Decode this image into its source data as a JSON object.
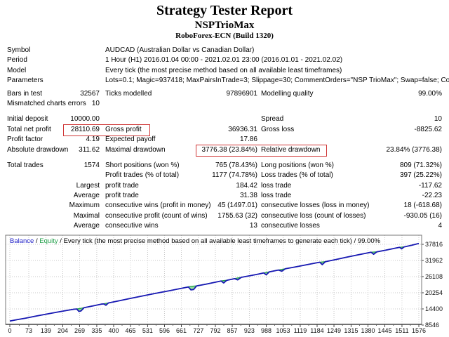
{
  "header": {
    "title": "Strategy Tester Report",
    "subtitle": "NSPTrioMax",
    "server": "RoboForex-ECN (Build 1320)"
  },
  "report": {
    "sections": [
      {
        "name": "setup",
        "rows": [
          {
            "c1": "Symbol",
            "c3": "AUDCAD (Australian Dollar vs Canadian Dollar)",
            "wide": true
          },
          {
            "c1": "Period",
            "c3": "1 Hour (H1) 2016.01.04 00:00 - 2021.02.01 23:00 (2016.01.01 - 2021.02.02)",
            "wide": true
          },
          {
            "c1": "Model",
            "c3": "Every tick (the most precise method based on all available least timeframes)",
            "wide": true
          },
          {
            "c1": "Parameters",
            "c3": "Lots=0.1; Magic=937418; MaxPairsInTrade=3; Slippage=30; CommentOrders=\"NSP TrioMax\"; Swap=false; Commission=false;",
            "wide": true
          }
        ]
      },
      {
        "name": "quality",
        "rows": [
          {
            "c1": "Bars in test",
            "c2": "32567",
            "c3": "Ticks modelled",
            "c4": "97896901",
            "c5": "Modelling quality",
            "c6": "99.00%"
          },
          {
            "c1": "Mismatched charts errors",
            "c2": "10"
          }
        ]
      },
      {
        "name": "results",
        "rows": [
          {
            "c1": "Initial deposit",
            "c2": "10000.00",
            "c5": "Spread",
            "c6": "10"
          },
          {
            "c1": "Total net profit",
            "c2": "28110.69",
            "c3": "Gross profit",
            "c4": "36936.31",
            "c5": "Gross loss",
            "c6": "-8825.62",
            "highlight": "h1"
          },
          {
            "c1": "Profit factor",
            "c2": "4.19",
            "c3": "Expected payoff",
            "c4": "17.86"
          },
          {
            "c1": "Absolute drawdown",
            "c2": "311.62",
            "c3": "Maximal drawdown",
            "c4": "3776.38 (23.84%)",
            "c5": "Relative drawdown",
            "c6": "23.84% (3776.38)",
            "highlight": "h2"
          }
        ]
      },
      {
        "name": "trades",
        "rows": [
          {
            "c1": "Total trades",
            "c2": "1574",
            "c3": "Short positions (won %)",
            "c4": "765 (78.43%)",
            "c5": "Long positions (won %)",
            "c6": "809 (71.32%)"
          },
          {
            "c3": "Profit trades (% of total)",
            "c4": "1177 (74.78%)",
            "c5": "Loss trades (% of total)",
            "c6": "397 (25.22%)"
          },
          {
            "c2": "Largest",
            "c3": "profit trade",
            "c4": "184.42",
            "c5": "loss trade",
            "c6": "-117.62"
          },
          {
            "c2": "Average",
            "c3": "profit trade",
            "c4": "31.38",
            "c5": "loss trade",
            "c6": "-22.23"
          },
          {
            "c2": "Maximum",
            "c3": "consecutive wins (profit in money)",
            "c4": "45 (1497.01)",
            "c5": "consecutive losses (loss in money)",
            "c6": "18 (-618.68)"
          },
          {
            "c2": "Maximal",
            "c3": "consecutive profit (count of wins)",
            "c4": "1755.63 (32)",
            "c5": "consecutive loss (count of losses)",
            "c6": "-930.05 (16)"
          },
          {
            "c2": "Average",
            "c3": "consecutive wins",
            "c4": "13",
            "c5": "consecutive losses",
            "c6": "4"
          }
        ]
      }
    ]
  },
  "chart_data": {
    "type": "line",
    "legend": {
      "balance_label": "Balance",
      "separator": " / ",
      "equity_label": "Equity",
      "rest": " / Every tick (the most precise method based on all available least timeframes to generate each tick) / 99.00%"
    },
    "x_ticks": [
      0,
      73,
      139,
      204,
      269,
      335,
      400,
      465,
      531,
      596,
      661,
      727,
      792,
      857,
      923,
      988,
      1053,
      1119,
      1184,
      1249,
      1315,
      1380,
      1445,
      1511,
      1576
    ],
    "y_ticks": [
      37816,
      31962,
      26108,
      20254,
      14400,
      8546
    ],
    "xlim": [
      0,
      1576
    ],
    "ylim": [
      8546,
      37816
    ],
    "grid": true,
    "legend_position": "top-left",
    "colors": {
      "balance": "#1818b4",
      "equity": "#22a04a",
      "equity_fill": "#90dd9c",
      "grid": "#c9c9c9",
      "axis": "#777777"
    },
    "series": [
      {
        "name": "Balance",
        "points": [
          [
            0,
            10000
          ],
          [
            30,
            10560
          ],
          [
            60,
            11050
          ],
          [
            100,
            11800
          ],
          [
            140,
            12480
          ],
          [
            180,
            13200
          ],
          [
            220,
            13870
          ],
          [
            248,
            14300
          ],
          [
            258,
            14380
          ],
          [
            266,
            13480
          ],
          [
            274,
            13650
          ],
          [
            286,
            14850
          ],
          [
            320,
            15480
          ],
          [
            352,
            16130
          ],
          [
            362,
            16200
          ],
          [
            370,
            15730
          ],
          [
            380,
            16560
          ],
          [
            420,
            17330
          ],
          [
            460,
            18110
          ],
          [
            500,
            18890
          ],
          [
            540,
            19650
          ],
          [
            580,
            20380
          ],
          [
            620,
            21100
          ],
          [
            655,
            21760
          ],
          [
            688,
            22350
          ],
          [
            698,
            21310
          ],
          [
            708,
            21420
          ],
          [
            720,
            22740
          ],
          [
            758,
            23420
          ],
          [
            796,
            24180
          ],
          [
            814,
            24540
          ],
          [
            824,
            23830
          ],
          [
            836,
            24780
          ],
          [
            866,
            25380
          ],
          [
            878,
            24940
          ],
          [
            892,
            25850
          ],
          [
            925,
            26420
          ],
          [
            958,
            27030
          ],
          [
            978,
            27430
          ],
          [
            988,
            26760
          ],
          [
            1000,
            27850
          ],
          [
            1035,
            28500
          ],
          [
            1048,
            28060
          ],
          [
            1062,
            28960
          ],
          [
            1100,
            29620
          ],
          [
            1138,
            30310
          ],
          [
            1176,
            31000
          ],
          [
            1194,
            31330
          ],
          [
            1204,
            30470
          ],
          [
            1216,
            31520
          ],
          [
            1255,
            32300
          ],
          [
            1295,
            33120
          ],
          [
            1335,
            33880
          ],
          [
            1372,
            34580
          ],
          [
            1392,
            34940
          ],
          [
            1402,
            34190
          ],
          [
            1414,
            35080
          ],
          [
            1448,
            35690
          ],
          [
            1485,
            36420
          ],
          [
            1502,
            36720
          ],
          [
            1510,
            36170
          ],
          [
            1519,
            36880
          ],
          [
            1548,
            37450
          ],
          [
            1576,
            38110
          ]
        ]
      },
      {
        "name": "Equity",
        "points": [
          [
            0,
            10000
          ],
          [
            60,
            11050
          ],
          [
            140,
            12480
          ],
          [
            220,
            13870
          ],
          [
            248,
            14300
          ],
          [
            266,
            14480
          ],
          [
            286,
            14850
          ],
          [
            352,
            16130
          ],
          [
            362,
            16280
          ],
          [
            380,
            16560
          ],
          [
            500,
            18890
          ],
          [
            655,
            21760
          ],
          [
            688,
            22420
          ],
          [
            698,
            22560
          ],
          [
            720,
            22740
          ],
          [
            796,
            24180
          ],
          [
            814,
            24540
          ],
          [
            824,
            24680
          ],
          [
            836,
            24780
          ],
          [
            866,
            25380
          ],
          [
            878,
            25620
          ],
          [
            892,
            25850
          ],
          [
            958,
            27030
          ],
          [
            978,
            27430
          ],
          [
            988,
            27640
          ],
          [
            1000,
            27850
          ],
          [
            1035,
            28500
          ],
          [
            1048,
            28720
          ],
          [
            1062,
            28960
          ],
          [
            1176,
            31000
          ],
          [
            1194,
            31330
          ],
          [
            1204,
            31430
          ],
          [
            1216,
            31520
          ],
          [
            1372,
            34580
          ],
          [
            1392,
            34940
          ],
          [
            1402,
            35010
          ],
          [
            1414,
            35080
          ],
          [
            1485,
            36420
          ],
          [
            1502,
            36720
          ],
          [
            1510,
            36800
          ],
          [
            1519,
            36880
          ],
          [
            1576,
            38110
          ]
        ]
      }
    ]
  }
}
